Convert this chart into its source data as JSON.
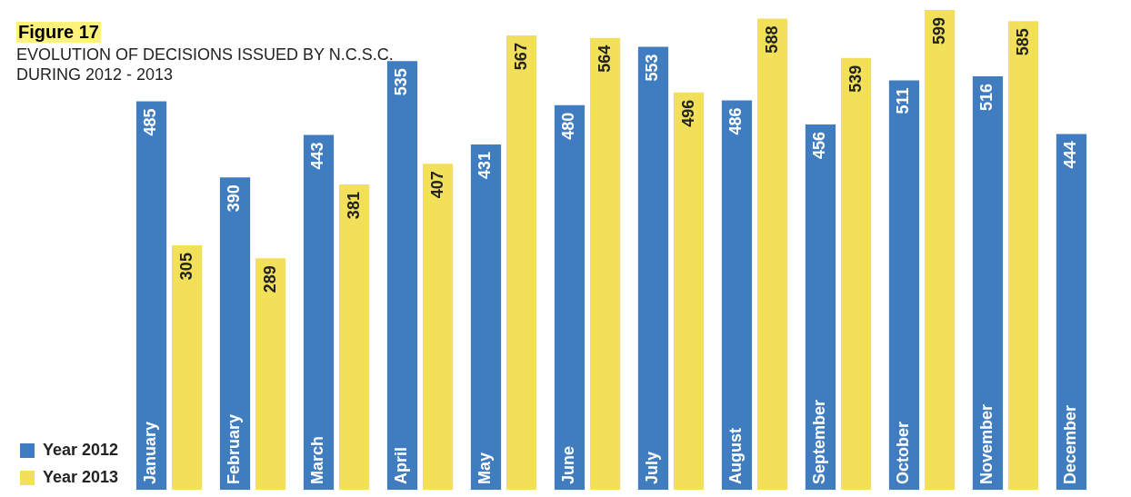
{
  "chart_data": {
    "type": "bar",
    "title": "Figure 17",
    "subtitle": "EVOLUTION OF DECISIONS ISSUED BY N.C.S.C. DURING 2012 - 2013",
    "categories": [
      "January",
      "February",
      "March",
      "April",
      "May",
      "June",
      "July",
      "August",
      "September",
      "October",
      "November",
      "December"
    ],
    "series": [
      {
        "name": "Year 2012",
        "color": "#3f7cc0",
        "values": [
          485,
          390,
          443,
          535,
          431,
          480,
          553,
          486,
          456,
          511,
          516,
          444
        ]
      },
      {
        "name": "Year 2013",
        "color": "#f3e05a",
        "values": [
          305,
          289,
          381,
          407,
          567,
          564,
          496,
          588,
          539,
          599,
          585,
          null
        ]
      }
    ],
    "data_labels": true,
    "grid": false,
    "legend": "bottom left"
  }
}
